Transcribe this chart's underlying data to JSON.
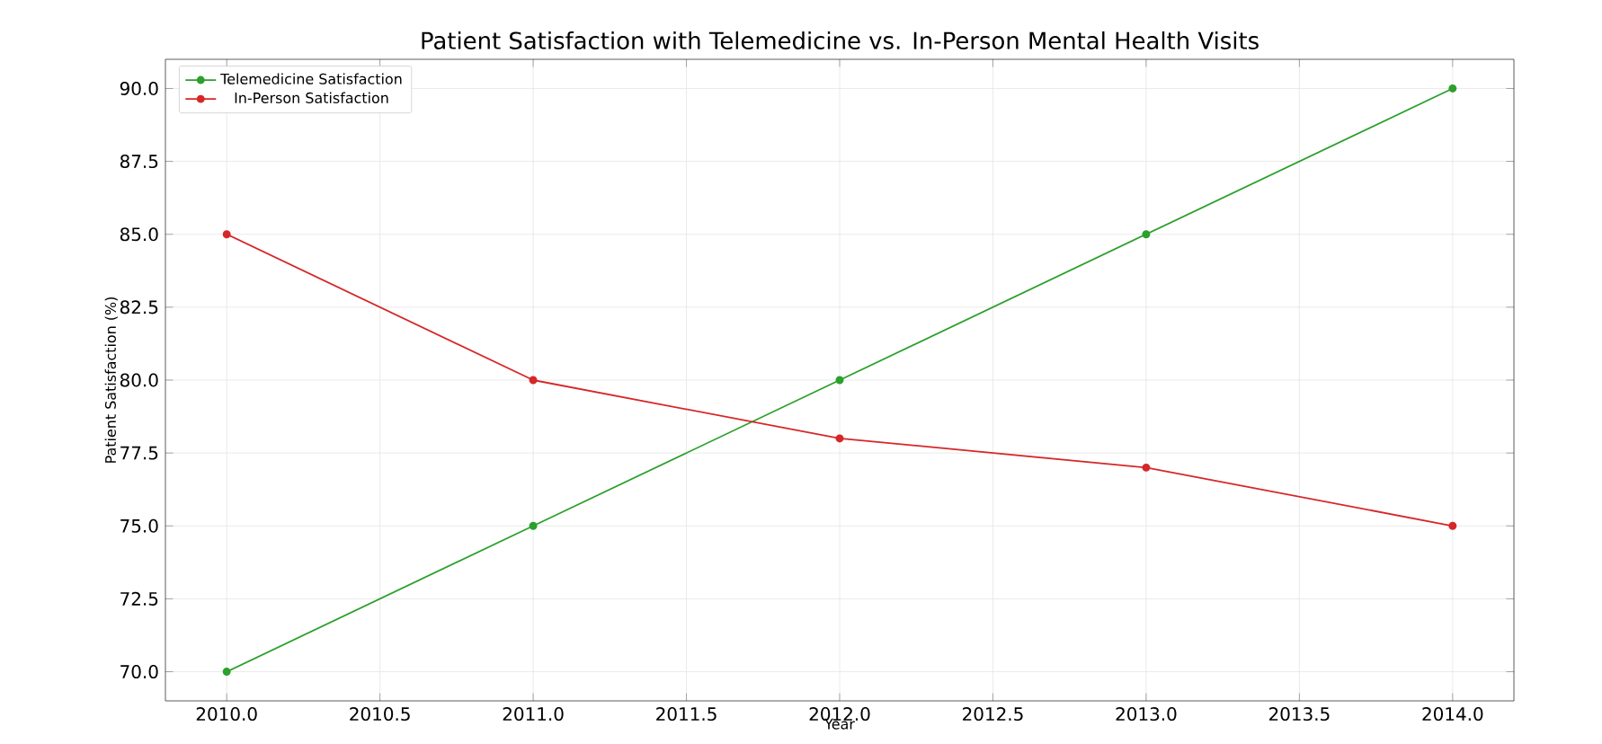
{
  "chart_data": {
    "type": "line",
    "title": "Patient Satisfaction with Telemedicine vs. In-Person Mental Health Visits",
    "xlabel": "Year",
    "ylabel": "Patient Satisfaction (%)",
    "x": [
      2010,
      2011,
      2012,
      2013,
      2014
    ],
    "series": [
      {
        "name": "Telemedicine Satisfaction",
        "color": "#2ca02c",
        "values": [
          70,
          75,
          80,
          85,
          90
        ]
      },
      {
        "name": "In-Person Satisfaction",
        "color": "#d62728",
        "values": [
          85,
          80,
          78,
          77,
          75
        ]
      }
    ],
    "xlim": [
      2009.8,
      2014.2
    ],
    "ylim": [
      69,
      91
    ],
    "xticks": [
      {
        "value": 2010,
        "label": "2010.0"
      },
      {
        "value": 2010.5,
        "label": "2010.5"
      },
      {
        "value": 2011,
        "label": "2011.0"
      },
      {
        "value": 2011.5,
        "label": "2011.5"
      },
      {
        "value": 2012,
        "label": "2012.0"
      },
      {
        "value": 2012.5,
        "label": "2012.5"
      },
      {
        "value": 2013,
        "label": "2013.0"
      },
      {
        "value": 2013.5,
        "label": "2013.5"
      },
      {
        "value": 2014,
        "label": "2014.0"
      }
    ],
    "yticks": [
      {
        "value": 70,
        "label": "70.0"
      },
      {
        "value": 72.5,
        "label": "72.5"
      },
      {
        "value": 75,
        "label": "75.0"
      },
      {
        "value": 77.5,
        "label": "77.5"
      },
      {
        "value": 80,
        "label": "80.0"
      },
      {
        "value": 82.5,
        "label": "82.5"
      },
      {
        "value": 85,
        "label": "85.0"
      },
      {
        "value": 87.5,
        "label": "87.5"
      },
      {
        "value": 90,
        "label": "90.0"
      }
    ],
    "grid": true,
    "legend": "top left",
    "marker": "circle",
    "line_style": "solid"
  }
}
